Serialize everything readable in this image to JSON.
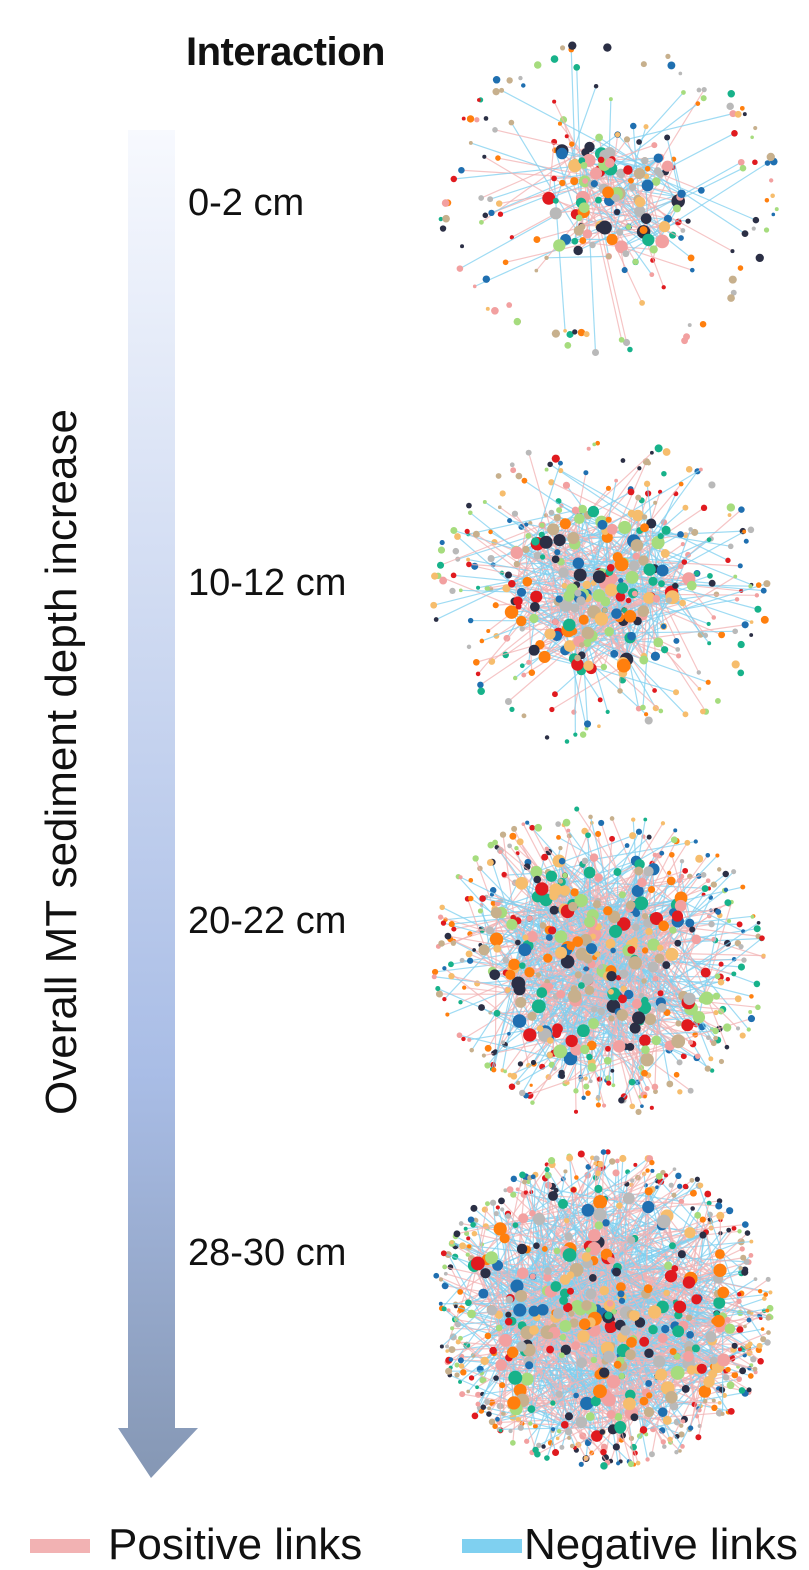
{
  "title": "Interaction",
  "axis_label": "Overall MT sediment depth increase",
  "depths": [
    {
      "label": "0-2 cm",
      "density": 0.18
    },
    {
      "label": "10-12 cm",
      "density": 0.5
    },
    {
      "label": "20-22 cm",
      "density": 0.78
    },
    {
      "label": "28-30 cm",
      "density": 1.0
    }
  ],
  "legend": [
    {
      "label": "Positive links",
      "color": "#f2b2b3"
    },
    {
      "label": "Negative links",
      "color": "#7fd0f0"
    }
  ],
  "colors": {
    "arrow_top": "#f7f9fe",
    "arrow_mid": "#a9bde6",
    "arrow_bottom": "#8597b4",
    "nodes": [
      "#e01a1f",
      "#17b28a",
      "#b9b9b9",
      "#c7b08d",
      "#a6dc7e",
      "#f6bd6d",
      "#1f6fb0",
      "#ff7f0e",
      "#2b2f45",
      "#f2a0a0"
    ],
    "positive_link": "#f2b2b3",
    "negative_link": "#7fd0f0"
  }
}
